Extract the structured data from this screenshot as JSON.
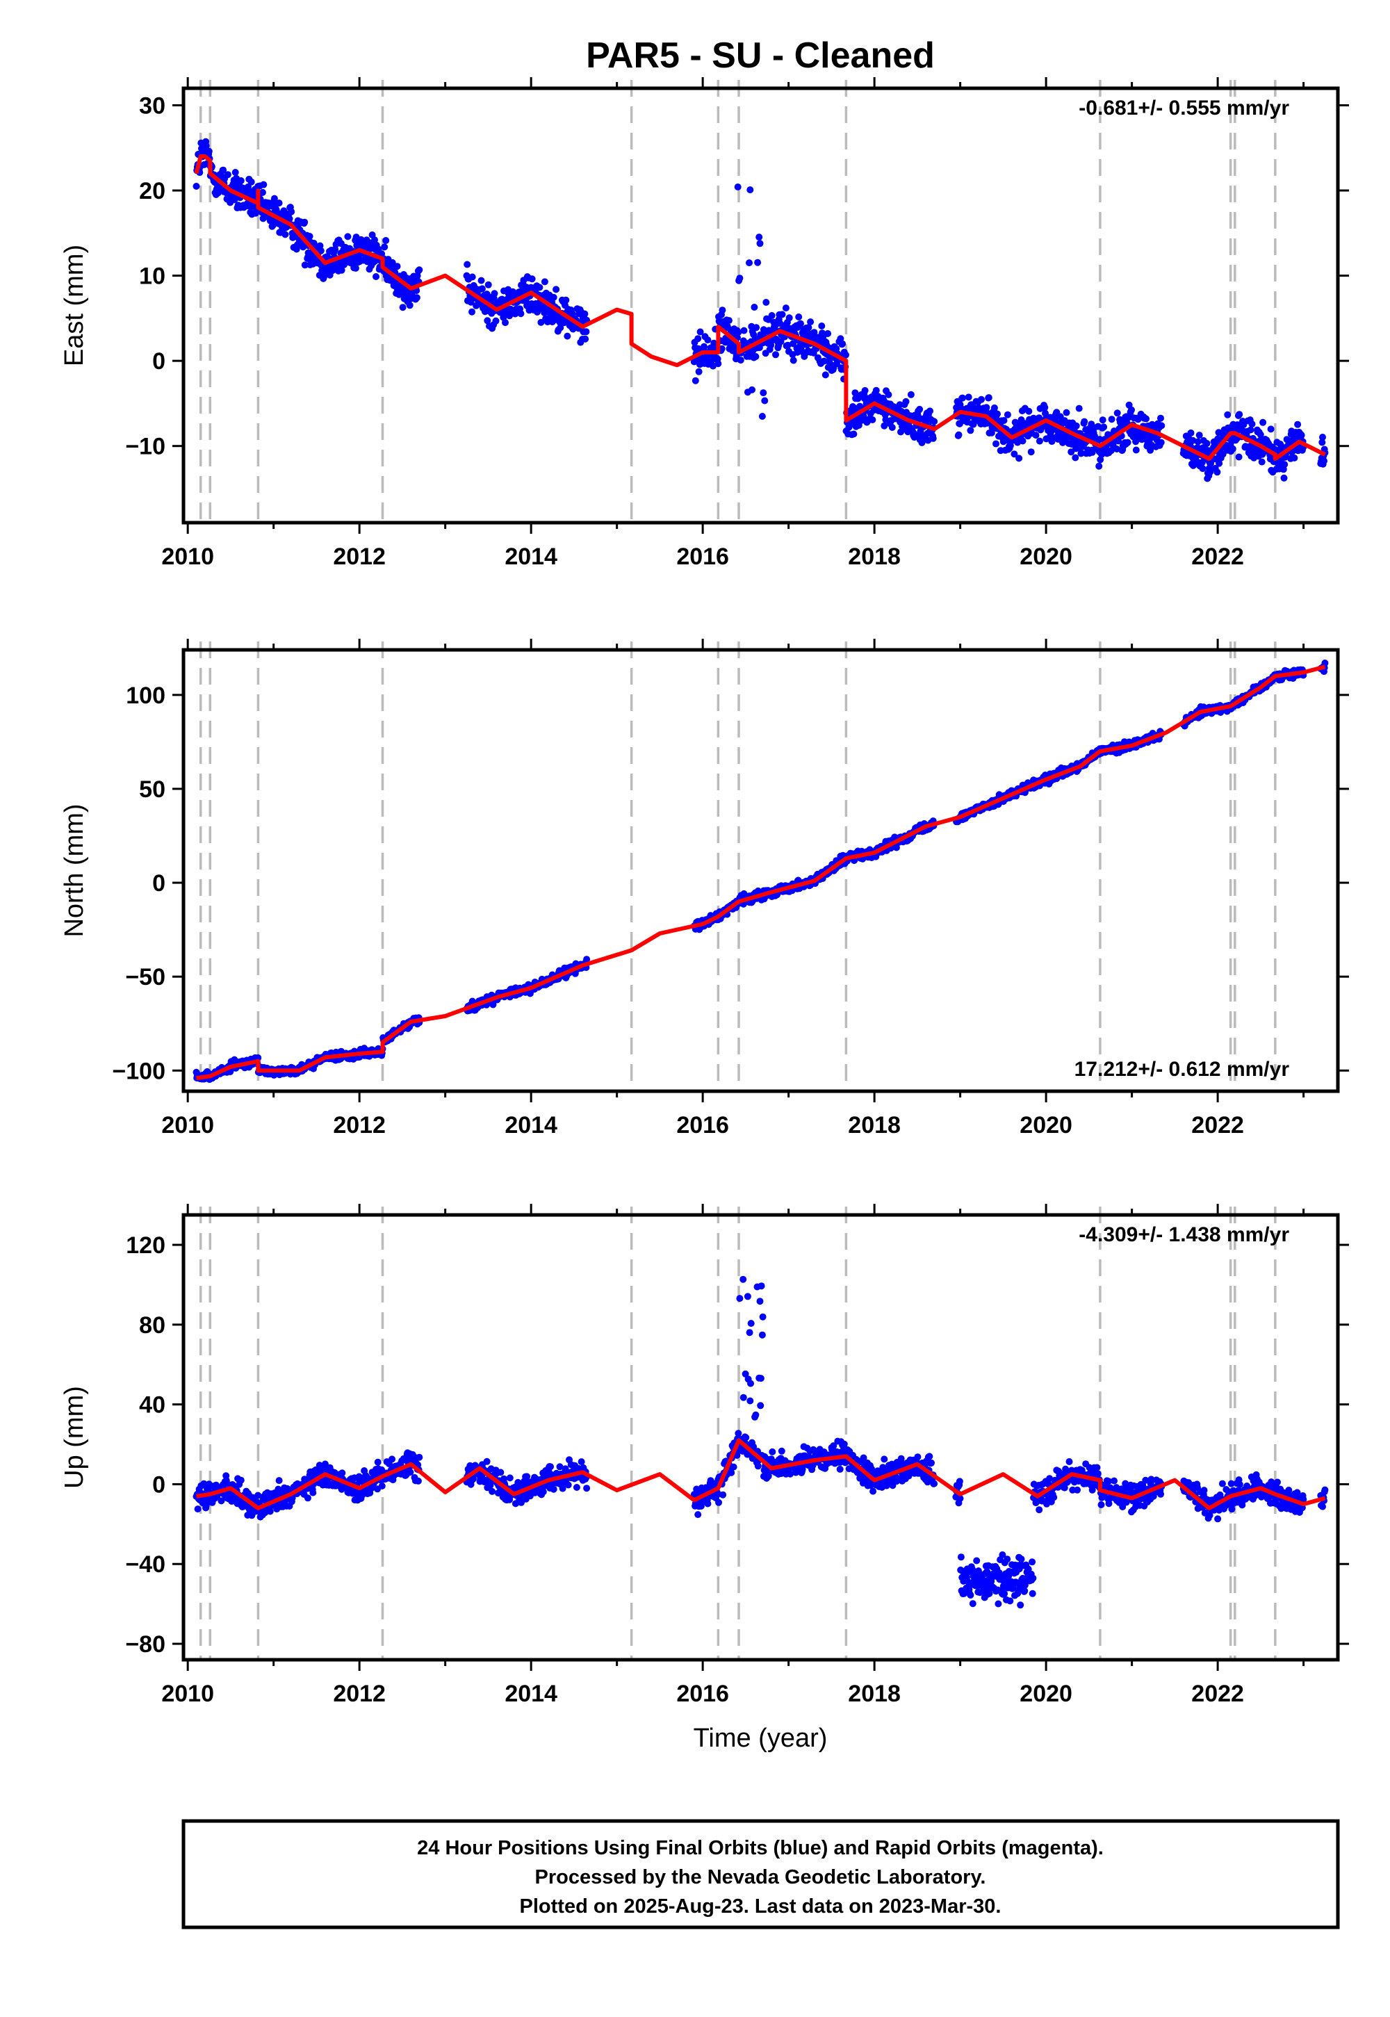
{
  "title": "PAR5  - SU - Cleaned",
  "xlabel": "Time (year)",
  "colors": {
    "points": "#0000ff",
    "model": "#ff0000",
    "breaks": "#bbbbbb",
    "frame": "#000000"
  },
  "footer": {
    "line1": "24 Hour Positions Using Final Orbits (blue) and Rapid Orbits (magenta).",
    "line2": "Processed by the Nevada Geodetic Laboratory.",
    "line3": "Plotted on 2025-Aug-23. Last data on 2023-Mar-30."
  },
  "chart_data": [
    {
      "type": "scatter",
      "name": "east",
      "ylabel": "East (mm)",
      "xlim": [
        2009.95,
        2023.4
      ],
      "ylim": [
        -19,
        32
      ],
      "x_ticks": [
        2010,
        2012,
        2014,
        2016,
        2018,
        2020,
        2022
      ],
      "y_ticks": [
        -10,
        0,
        10,
        20,
        30
      ],
      "y_tick_labels": [
        "−10",
        "0",
        "10",
        "20",
        "30"
      ],
      "rate": "-0.681+/- 0.555 mm/yr",
      "rate_position": "top-right",
      "breaks": [
        2010.15,
        2010.26,
        2010.82,
        2012.27,
        2015.17,
        2016.18,
        2016.42,
        2017.67,
        2020.63,
        2022.15,
        2022.2,
        2022.67
      ],
      "model": [
        [
          2010.1,
          22
        ],
        [
          2010.15,
          24
        ],
        [
          2010.2,
          24
        ],
        [
          2010.26,
          23.5
        ],
        [
          2010.26,
          22
        ],
        [
          2010.5,
          20
        ],
        [
          2010.82,
          18.5
        ],
        [
          2010.82,
          20
        ],
        [
          2010.82,
          18
        ],
        [
          2011.2,
          16
        ],
        [
          2011.6,
          11.5
        ],
        [
          2012.0,
          13
        ],
        [
          2012.27,
          12
        ],
        [
          2012.27,
          11
        ],
        [
          2012.6,
          8.5
        ],
        [
          2013.0,
          10
        ],
        [
          2013.3,
          8
        ],
        [
          2013.6,
          6
        ],
        [
          2014.0,
          8
        ],
        [
          2014.3,
          6
        ],
        [
          2014.6,
          4
        ],
        [
          2015.0,
          6
        ],
        [
          2015.17,
          5.5
        ],
        [
          2015.17,
          2
        ],
        [
          2015.4,
          0.5
        ],
        [
          2015.7,
          -0.5
        ],
        [
          2016.0,
          1
        ],
        [
          2016.18,
          1
        ],
        [
          2016.18,
          4
        ],
        [
          2016.42,
          2
        ],
        [
          2016.42,
          1
        ],
        [
          2016.9,
          3.5
        ],
        [
          2017.3,
          2
        ],
        [
          2017.67,
          0
        ],
        [
          2017.67,
          -7
        ],
        [
          2018.0,
          -5
        ],
        [
          2018.4,
          -7
        ],
        [
          2018.7,
          -8
        ],
        [
          2019.0,
          -6
        ],
        [
          2019.3,
          -6.5
        ],
        [
          2019.6,
          -9
        ],
        [
          2020.0,
          -7
        ],
        [
          2020.3,
          -8.5
        ],
        [
          2020.63,
          -10
        ],
        [
          2021.0,
          -7.5
        ],
        [
          2021.3,
          -8.5
        ],
        [
          2021.6,
          -10
        ],
        [
          2021.9,
          -11.5
        ],
        [
          2022.15,
          -8.5
        ],
        [
          2022.2,
          -8.5
        ],
        [
          2022.5,
          -10
        ],
        [
          2022.67,
          -11
        ],
        [
          2022.67,
          -11.5
        ],
        [
          2022.95,
          -9.5
        ],
        [
          2023.25,
          -11
        ]
      ]
    },
    {
      "type": "scatter",
      "name": "north",
      "ylabel": "North (mm)",
      "xlim": [
        2009.95,
        2023.4
      ],
      "ylim": [
        -111,
        124
      ],
      "x_ticks": [
        2010,
        2012,
        2014,
        2016,
        2018,
        2020,
        2022
      ],
      "y_ticks": [
        -100,
        -50,
        0,
        50,
        100
      ],
      "y_tick_labels": [
        "−100",
        "−50",
        "0",
        "50",
        "100"
      ],
      "rate": "17.212+/- 0.612 mm/yr",
      "rate_position": "bottom-right",
      "breaks": [
        2010.15,
        2010.26,
        2010.82,
        2012.27,
        2015.17,
        2016.18,
        2016.42,
        2017.67,
        2020.63,
        2022.15,
        2022.2,
        2022.67
      ],
      "model": [
        [
          2010.1,
          -104
        ],
        [
          2010.26,
          -103
        ],
        [
          2010.5,
          -98
        ],
        [
          2010.82,
          -95
        ],
        [
          2010.82,
          -100
        ],
        [
          2011.3,
          -100
        ],
        [
          2011.6,
          -93
        ],
        [
          2012.0,
          -91
        ],
        [
          2012.27,
          -90
        ],
        [
          2012.27,
          -85
        ],
        [
          2012.6,
          -74
        ],
        [
          2013.0,
          -71
        ],
        [
          2013.6,
          -61
        ],
        [
          2014.0,
          -56
        ],
        [
          2014.6,
          -44
        ],
        [
          2015.17,
          -36
        ],
        [
          2015.5,
          -27
        ],
        [
          2016.0,
          -22
        ],
        [
          2016.18,
          -18
        ],
        [
          2016.42,
          -10
        ],
        [
          2016.8,
          -5
        ],
        [
          2017.3,
          1
        ],
        [
          2017.67,
          13
        ],
        [
          2018.0,
          16
        ],
        [
          2018.6,
          30
        ],
        [
          2019.0,
          35
        ],
        [
          2019.5,
          45
        ],
        [
          2020.0,
          55
        ],
        [
          2020.4,
          62
        ],
        [
          2020.63,
          70
        ],
        [
          2021.0,
          73
        ],
        [
          2021.4,
          80
        ],
        [
          2021.8,
          91
        ],
        [
          2022.15,
          94
        ],
        [
          2022.5,
          104
        ],
        [
          2022.67,
          110
        ],
        [
          2023.0,
          112
        ],
        [
          2023.25,
          115
        ]
      ]
    },
    {
      "type": "scatter",
      "name": "up",
      "ylabel": "Up (mm)",
      "xlim": [
        2009.95,
        2023.4
      ],
      "ylim": [
        -88,
        135
      ],
      "x_ticks": [
        2010,
        2012,
        2014,
        2016,
        2018,
        2020,
        2022
      ],
      "y_ticks": [
        -80,
        -40,
        0,
        40,
        80,
        120
      ],
      "y_tick_labels": [
        "−80",
        "−40",
        "0",
        "40",
        "80",
        "120"
      ],
      "rate": "-4.309+/- 1.438 mm/yr",
      "rate_position": "top-right",
      "breaks": [
        2010.15,
        2010.26,
        2010.82,
        2012.27,
        2015.17,
        2016.18,
        2016.42,
        2017.67,
        2020.63,
        2022.15,
        2022.2,
        2022.67
      ],
      "model": [
        [
          2010.1,
          -6
        ],
        [
          2010.26,
          -5
        ],
        [
          2010.5,
          -2
        ],
        [
          2010.82,
          -12
        ],
        [
          2011.2,
          -5
        ],
        [
          2011.6,
          5
        ],
        [
          2012.0,
          -2
        ],
        [
          2012.27,
          4
        ],
        [
          2012.6,
          10
        ],
        [
          2013.0,
          -4
        ],
        [
          2013.4,
          8
        ],
        [
          2013.8,
          -5
        ],
        [
          2014.2,
          2
        ],
        [
          2014.6,
          6
        ],
        [
          2015.0,
          -3
        ],
        [
          2015.5,
          5
        ],
        [
          2015.9,
          -8
        ],
        [
          2016.18,
          -2
        ],
        [
          2016.42,
          22
        ],
        [
          2016.8,
          8
        ],
        [
          2017.3,
          12
        ],
        [
          2017.67,
          14
        ],
        [
          2018.0,
          2
        ],
        [
          2018.5,
          10
        ],
        [
          2019.0,
          -5
        ],
        [
          2019.5,
          5
        ],
        [
          2019.9,
          -6
        ],
        [
          2020.3,
          5
        ],
        [
          2020.63,
          2
        ],
        [
          2020.63,
          -3
        ],
        [
          2021.0,
          -7
        ],
        [
          2021.5,
          2
        ],
        [
          2021.9,
          -12
        ],
        [
          2022.15,
          -6
        ],
        [
          2022.5,
          -2
        ],
        [
          2022.67,
          -5
        ],
        [
          2023.0,
          -10
        ],
        [
          2023.25,
          -7
        ]
      ]
    }
  ]
}
